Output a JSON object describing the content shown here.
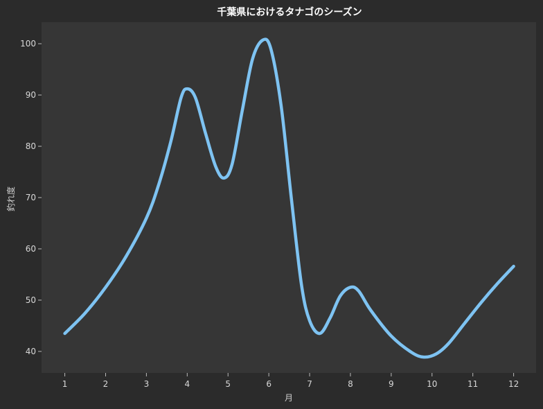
{
  "chart_data": {
    "type": "line",
    "title": "千葉県におけるタナゴのシーズン",
    "xlabel": "月",
    "ylabel": "釣れ度",
    "x": [
      1,
      2,
      3,
      4,
      5,
      6,
      7,
      8,
      9,
      10,
      11,
      12
    ],
    "xlim": [
      0.43,
      12.55
    ],
    "ylim": [
      35.8,
      104.2
    ],
    "yticks": [
      40,
      50,
      60,
      70,
      80,
      90,
      100
    ],
    "series": [
      {
        "name": "",
        "curve_points": [
          [
            1.0,
            43.5
          ],
          [
            1.5,
            47.5
          ],
          [
            2.0,
            52.5
          ],
          [
            2.5,
            58.5
          ],
          [
            3.0,
            66.0
          ],
          [
            3.3,
            72.5
          ],
          [
            3.6,
            81.0
          ],
          [
            3.85,
            89.5
          ],
          [
            4.0,
            91.2
          ],
          [
            4.2,
            89.5
          ],
          [
            4.45,
            82.5
          ],
          [
            4.7,
            76.0
          ],
          [
            4.9,
            73.8
          ],
          [
            5.1,
            76.5
          ],
          [
            5.35,
            87.0
          ],
          [
            5.6,
            97.0
          ],
          [
            5.85,
            100.7
          ],
          [
            6.05,
            99.0
          ],
          [
            6.3,
            88.0
          ],
          [
            6.55,
            70.0
          ],
          [
            6.8,
            53.0
          ],
          [
            7.0,
            46.0
          ],
          [
            7.25,
            43.5
          ],
          [
            7.5,
            46.5
          ],
          [
            7.75,
            50.8
          ],
          [
            8.0,
            52.5
          ],
          [
            8.2,
            51.8
          ],
          [
            8.5,
            48.0
          ],
          [
            9.0,
            43.0
          ],
          [
            9.5,
            39.8
          ],
          [
            9.8,
            38.9
          ],
          [
            10.1,
            39.5
          ],
          [
            10.4,
            41.5
          ],
          [
            10.8,
            45.5
          ],
          [
            11.2,
            49.5
          ],
          [
            11.6,
            53.2
          ],
          [
            12.0,
            56.6
          ]
        ],
        "color": "#7ec3f2"
      }
    ],
    "grid": false,
    "background": "#363636",
    "figure_background": "#2b2b2b"
  }
}
